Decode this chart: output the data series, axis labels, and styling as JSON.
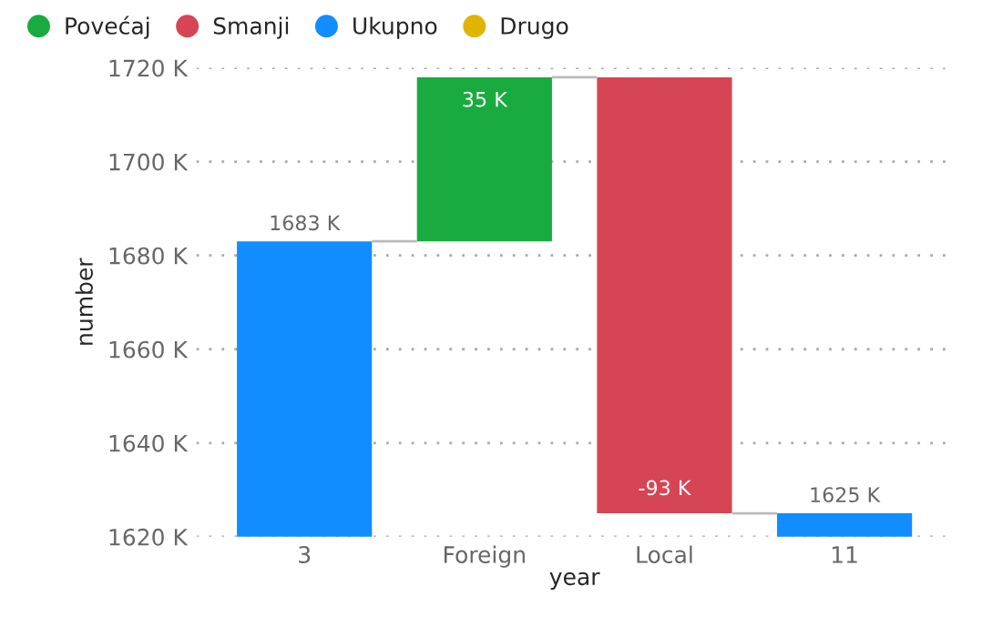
{
  "chart_data": {
    "type": "bar",
    "categories": [
      "3",
      "Foreign",
      "Local",
      "11"
    ],
    "series": [
      {
        "name": "Povećaj",
        "color": "#1aab40",
        "values": [
          null,
          35,
          null,
          null
        ],
        "base": [
          null,
          1683,
          null,
          null
        ],
        "value_labels": [
          null,
          "35 K",
          null,
          null
        ]
      },
      {
        "name": "Smanji",
        "color": "#d64554",
        "values": [
          null,
          null,
          -93,
          null
        ],
        "base": [
          null,
          null,
          1718,
          null
        ],
        "value_labels": [
          null,
          null,
          "-93 K",
          null
        ]
      },
      {
        "name": "Ukupno",
        "color": "#118dff",
        "values": [
          1683,
          null,
          null,
          1625
        ],
        "value_labels": [
          "1683 K",
          null,
          null,
          "1625 K"
        ]
      },
      {
        "name": "Drugo",
        "color": "#e0b400",
        "values": [
          null,
          null,
          null,
          null
        ]
      }
    ],
    "xlabel": "year",
    "ylabel": "number",
    "ylim": [
      1620,
      1720
    ],
    "yticks": [
      {
        "value": 1620,
        "label": "1620 K"
      },
      {
        "value": 1640,
        "label": "1640 K"
      },
      {
        "value": 1660,
        "label": "1660 K"
      },
      {
        "value": 1680,
        "label": "1680 K"
      },
      {
        "value": 1700,
        "label": "1700 K"
      },
      {
        "value": 1720,
        "label": "1720 K"
      }
    ],
    "grid": "y",
    "legend": "top left",
    "marker": "circle"
  }
}
